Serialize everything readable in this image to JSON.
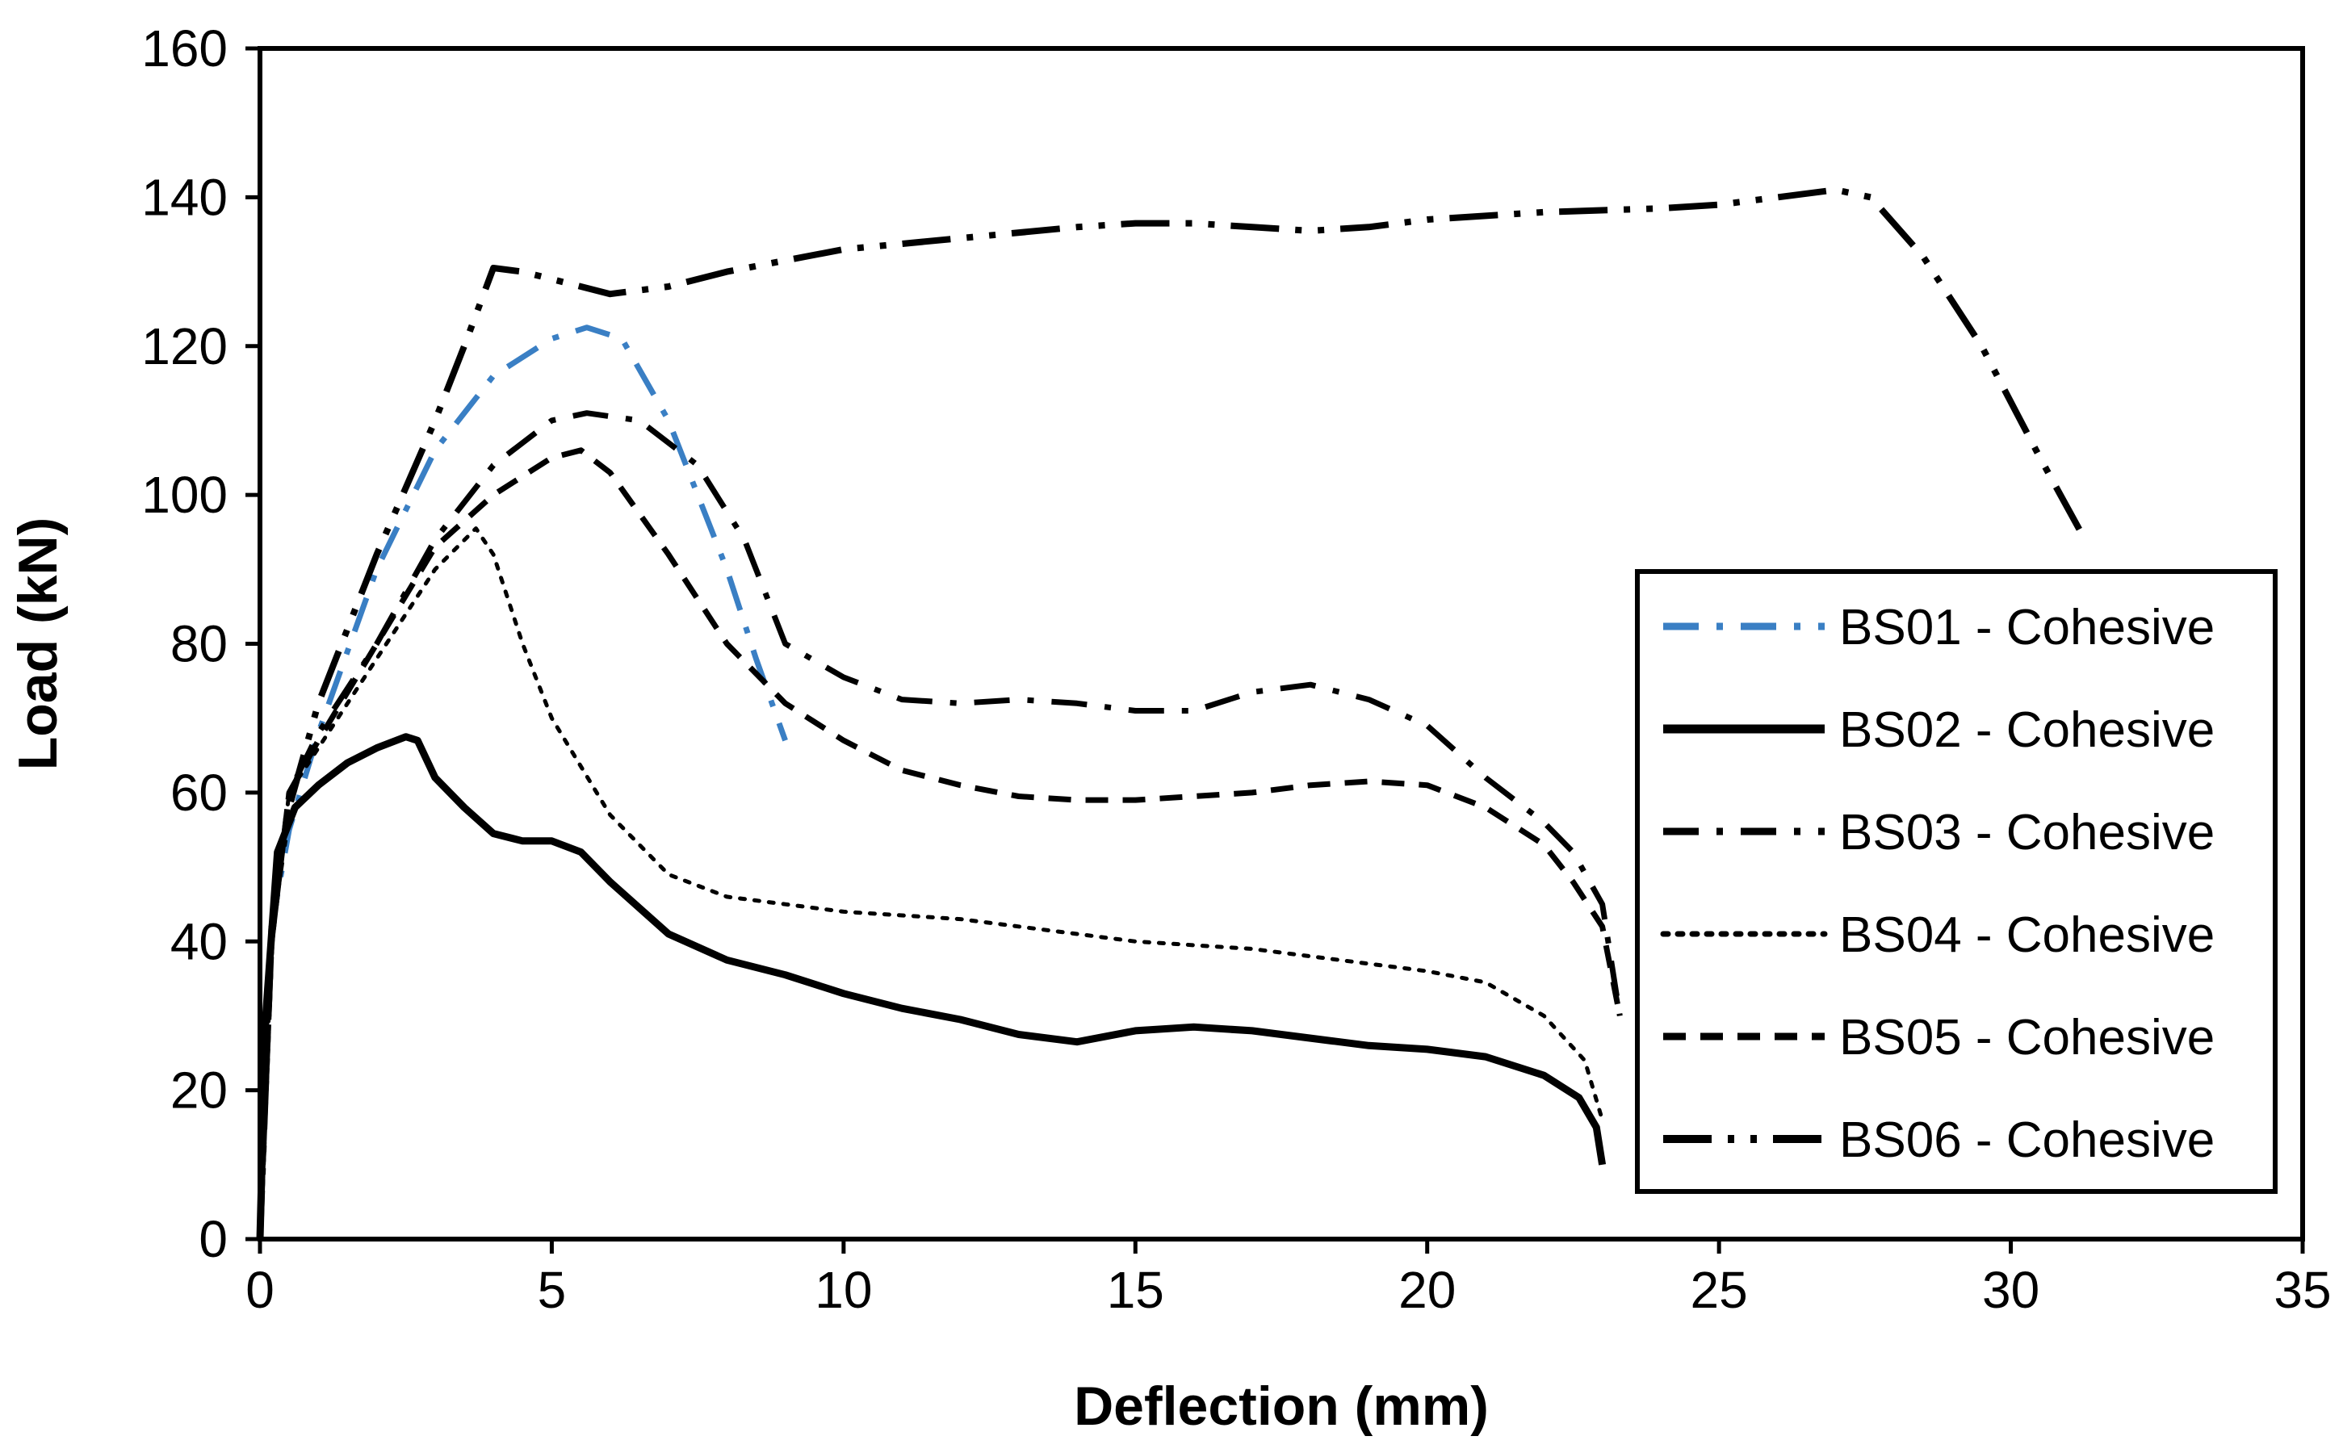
{
  "chart_data": {
    "type": "line",
    "title": "",
    "xlabel": "Deflection (mm)",
    "ylabel": "Load (kN)",
    "xlim": [
      0,
      35
    ],
    "ylim": [
      0,
      160
    ],
    "xticks": [
      0,
      5,
      10,
      15,
      20,
      25,
      30,
      35
    ],
    "yticks": [
      0,
      20,
      40,
      60,
      80,
      100,
      120,
      140,
      160
    ],
    "grid": false,
    "legend_position": "bottom-right",
    "series": [
      {
        "name": "BS01 - Cohesive",
        "color": "#3a7fc4",
        "style": "dash-dot",
        "points": [
          [
            0,
            0
          ],
          [
            0.2,
            42
          ],
          [
            0.5,
            55
          ],
          [
            1,
            68
          ],
          [
            2,
            90
          ],
          [
            3,
            106
          ],
          [
            4,
            116
          ],
          [
            5,
            121
          ],
          [
            5.6,
            122.5
          ],
          [
            6.2,
            121
          ],
          [
            7,
            110
          ],
          [
            8,
            90
          ],
          [
            8.5,
            78
          ],
          [
            9,
            67
          ]
        ]
      },
      {
        "name": "BS02 - Cohesive",
        "color": "#000000",
        "style": "solid",
        "points": [
          [
            0,
            0
          ],
          [
            0.1,
            30
          ],
          [
            0.3,
            52
          ],
          [
            0.6,
            58
          ],
          [
            1,
            61
          ],
          [
            1.5,
            64
          ],
          [
            2,
            66
          ],
          [
            2.5,
            67.5
          ],
          [
            2.7,
            67
          ],
          [
            3,
            62
          ],
          [
            3.5,
            58
          ],
          [
            4,
            54.5
          ],
          [
            4.5,
            53.5
          ],
          [
            5,
            53.5
          ],
          [
            5.5,
            52
          ],
          [
            6,
            48
          ],
          [
            7,
            41
          ],
          [
            8,
            37.5
          ],
          [
            9,
            35.5
          ],
          [
            10,
            33
          ],
          [
            11,
            31
          ],
          [
            12,
            29.5
          ],
          [
            13,
            27.5
          ],
          [
            14,
            26.5
          ],
          [
            15,
            28
          ],
          [
            16,
            28.5
          ],
          [
            17,
            28
          ],
          [
            18,
            27
          ],
          [
            19,
            26
          ],
          [
            20,
            25.5
          ],
          [
            21,
            24.5
          ],
          [
            22,
            22
          ],
          [
            22.6,
            19
          ],
          [
            22.9,
            15
          ],
          [
            23,
            10
          ]
        ]
      },
      {
        "name": "BS03 - Cohesive",
        "color": "#000000",
        "style": "dash-dot",
        "points": [
          [
            0,
            0
          ],
          [
            0.2,
            40
          ],
          [
            0.5,
            60
          ],
          [
            1,
            68
          ],
          [
            2,
            80
          ],
          [
            3,
            94
          ],
          [
            4,
            104
          ],
          [
            5,
            110
          ],
          [
            5.6,
            111
          ],
          [
            6.5,
            110
          ],
          [
            7.5,
            104
          ],
          [
            8.3,
            94
          ],
          [
            9,
            80
          ],
          [
            10,
            75.5
          ],
          [
            11,
            72.5
          ],
          [
            12,
            72
          ],
          [
            13,
            72.5
          ],
          [
            14,
            72
          ],
          [
            15,
            71
          ],
          [
            16,
            71
          ],
          [
            17,
            73.5
          ],
          [
            18,
            74.5
          ],
          [
            19,
            72.5
          ],
          [
            20,
            69
          ],
          [
            21,
            62
          ],
          [
            22,
            56
          ],
          [
            22.5,
            52
          ],
          [
            23,
            45
          ],
          [
            23.3,
            30
          ]
        ]
      },
      {
        "name": "BS04 - Cohesive",
        "color": "#000000",
        "style": "dotted",
        "points": [
          [
            0,
            0
          ],
          [
            0.2,
            40
          ],
          [
            0.5,
            60
          ],
          [
            1,
            66
          ],
          [
            2,
            78
          ],
          [
            3,
            90
          ],
          [
            3.7,
            95.5
          ],
          [
            4,
            92
          ],
          [
            4.5,
            80
          ],
          [
            5,
            70
          ],
          [
            6,
            57
          ],
          [
            7,
            49
          ],
          [
            8,
            46
          ],
          [
            9,
            45
          ],
          [
            10,
            44
          ],
          [
            11,
            43.5
          ],
          [
            12,
            43
          ],
          [
            13,
            42
          ],
          [
            14,
            41
          ],
          [
            15,
            40
          ],
          [
            16,
            39.5
          ],
          [
            17,
            39
          ],
          [
            18,
            38
          ],
          [
            19,
            37
          ],
          [
            20,
            36
          ],
          [
            21,
            34.5
          ],
          [
            22,
            30
          ],
          [
            22.7,
            24
          ],
          [
            23,
            16
          ]
        ]
      },
      {
        "name": "BS05 - Cohesive",
        "color": "#000000",
        "style": "dashed",
        "points": [
          [
            0,
            0
          ],
          [
            0.2,
            40
          ],
          [
            0.5,
            60
          ],
          [
            1,
            67
          ],
          [
            2,
            80
          ],
          [
            3,
            93
          ],
          [
            4,
            100
          ],
          [
            5,
            105
          ],
          [
            5.5,
            106
          ],
          [
            6,
            103
          ],
          [
            7,
            92
          ],
          [
            8,
            80
          ],
          [
            9,
            72
          ],
          [
            10,
            67
          ],
          [
            11,
            63
          ],
          [
            12,
            61
          ],
          [
            13,
            59.5
          ],
          [
            14,
            59
          ],
          [
            15,
            59
          ],
          [
            16,
            59.5
          ],
          [
            17,
            60
          ],
          [
            18,
            61
          ],
          [
            19,
            61.5
          ],
          [
            20,
            61
          ],
          [
            21,
            58
          ],
          [
            22,
            53
          ],
          [
            22.5,
            48
          ],
          [
            23,
            42
          ],
          [
            23.3,
            30
          ]
        ]
      },
      {
        "name": "BS06 - Cohesive",
        "color": "#000000",
        "style": "long-dash-dot-dot",
        "points": [
          [
            0,
            0
          ],
          [
            0.2,
            42
          ],
          [
            0.5,
            58
          ],
          [
            1,
            72
          ],
          [
            2,
            92
          ],
          [
            3,
            110
          ],
          [
            3.5,
            120
          ],
          [
            4,
            130.5
          ],
          [
            4.5,
            130
          ],
          [
            5,
            129
          ],
          [
            5.5,
            128
          ],
          [
            6,
            127
          ],
          [
            7,
            128
          ],
          [
            8,
            130
          ],
          [
            9,
            131.5
          ],
          [
            10,
            133
          ],
          [
            12,
            134.5
          ],
          [
            14,
            136
          ],
          [
            15,
            136.5
          ],
          [
            16,
            136.5
          ],
          [
            17,
            136
          ],
          [
            18,
            135.5
          ],
          [
            19,
            136
          ],
          [
            20,
            137
          ],
          [
            22,
            138
          ],
          [
            24,
            138.5
          ],
          [
            25,
            139
          ],
          [
            26,
            140
          ],
          [
            27,
            141
          ],
          [
            27.6,
            140
          ],
          [
            28.5,
            132
          ],
          [
            29.5,
            120
          ],
          [
            30.5,
            105
          ],
          [
            31.2,
            95
          ]
        ]
      }
    ]
  }
}
